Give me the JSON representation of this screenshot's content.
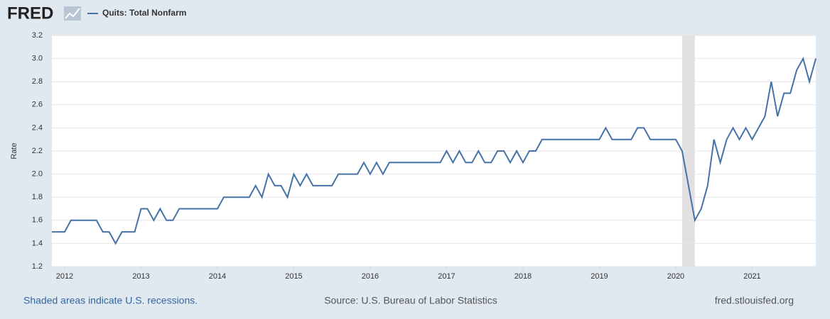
{
  "logo": "FRED",
  "footer": {
    "note": "Shaded areas indicate U.S. recessions.",
    "source": "Source: U.S. Bureau of Labor Statistics",
    "site": "fred.stlouisfed.org"
  },
  "chart_data": {
    "type": "line",
    "ylabel": "Rate",
    "recessions": [
      [
        2020.083,
        2020.25
      ]
    ],
    "xlim": [
      2011.833,
      2021.833
    ],
    "xticks": [
      2012,
      2013,
      2014,
      2015,
      2016,
      2017,
      2018,
      2019,
      2020,
      2021
    ],
    "ylim": [
      1.2,
      3.2
    ],
    "yticks": [
      1.2,
      1.4,
      1.6,
      1.8,
      {
        "value": 2,
        "label": "2.0"
      },
      2.2,
      2.4,
      2.6,
      2.8,
      {
        "value": 3,
        "label": "3.0"
      },
      3.2
    ],
    "grid": true,
    "x": [
      2011.833,
      2011.917,
      2012,
      2012.083,
      2012.167,
      2012.25,
      2012.333,
      2012.417,
      2012.5,
      2012.583,
      2012.667,
      2012.75,
      2012.833,
      2012.917,
      2013,
      2013.083,
      2013.167,
      2013.25,
      2013.333,
      2013.417,
      2013.5,
      2013.583,
      2013.667,
      2013.75,
      2013.833,
      2013.917,
      2014,
      2014.083,
      2014.167,
      2014.25,
      2014.333,
      2014.417,
      2014.5,
      2014.583,
      2014.667,
      2014.75,
      2014.833,
      2014.917,
      2015,
      2015.083,
      2015.167,
      2015.25,
      2015.333,
      2015.417,
      2015.5,
      2015.583,
      2015.667,
      2015.75,
      2015.833,
      2015.917,
      2016,
      2016.083,
      2016.167,
      2016.25,
      2016.333,
      2016.417,
      2016.5,
      2016.583,
      2016.667,
      2016.75,
      2016.833,
      2016.917,
      2017,
      2017.083,
      2017.167,
      2017.25,
      2017.333,
      2017.417,
      2017.5,
      2017.583,
      2017.667,
      2017.75,
      2017.833,
      2017.917,
      2018,
      2018.083,
      2018.167,
      2018.25,
      2018.333,
      2018.417,
      2018.5,
      2018.583,
      2018.667,
      2018.75,
      2018.833,
      2018.917,
      2019,
      2019.083,
      2019.167,
      2019.25,
      2019.333,
      2019.417,
      2019.5,
      2019.583,
      2019.667,
      2019.75,
      2019.833,
      2019.917,
      2020,
      2020.083,
      2020.167,
      2020.25,
      2020.333,
      2020.417,
      2020.5,
      2020.583,
      2020.667,
      2020.75,
      2020.833,
      2020.917,
      2021,
      2021.083,
      2021.167,
      2021.25,
      2021.333,
      2021.417,
      2021.5,
      2021.583,
      2021.667,
      2021.75,
      2021.833
    ],
    "series": [
      {
        "name": "Quits: Total Nonfarm",
        "color": "#4572a7",
        "values": [
          1.5,
          1.5,
          1.5,
          1.6,
          1.6,
          1.6,
          1.6,
          1.6,
          1.5,
          1.5,
          1.4,
          1.5,
          1.5,
          1.5,
          1.7,
          1.7,
          1.6,
          1.7,
          1.6,
          1.6,
          1.7,
          1.7,
          1.7,
          1.7,
          1.7,
          1.7,
          1.7,
          1.8,
          1.8,
          1.8,
          1.8,
          1.8,
          1.9,
          1.8,
          2.0,
          1.9,
          1.9,
          1.8,
          2.0,
          1.9,
          2.0,
          1.9,
          1.9,
          1.9,
          1.9,
          2.0,
          2.0,
          2.0,
          2.0,
          2.1,
          2.0,
          2.1,
          2.0,
          2.1,
          2.1,
          2.1,
          2.1,
          2.1,
          2.1,
          2.1,
          2.1,
          2.1,
          2.2,
          2.1,
          2.2,
          2.1,
          2.1,
          2.2,
          2.1,
          2.1,
          2.2,
          2.2,
          2.1,
          2.2,
          2.1,
          2.2,
          2.2,
          2.3,
          2.3,
          2.3,
          2.3,
          2.3,
          2.3,
          2.3,
          2.3,
          2.3,
          2.3,
          2.4,
          2.3,
          2.3,
          2.3,
          2.3,
          2.4,
          2.4,
          2.3,
          2.3,
          2.3,
          2.3,
          2.3,
          2.2,
          1.9,
          1.6,
          1.7,
          1.9,
          2.3,
          2.1,
          2.3,
          2.4,
          2.3,
          2.4,
          2.3,
          2.4,
          2.5,
          2.8,
          2.5,
          2.7,
          2.7,
          2.9,
          3.0,
          2.8,
          3.0
        ]
      }
    ]
  }
}
